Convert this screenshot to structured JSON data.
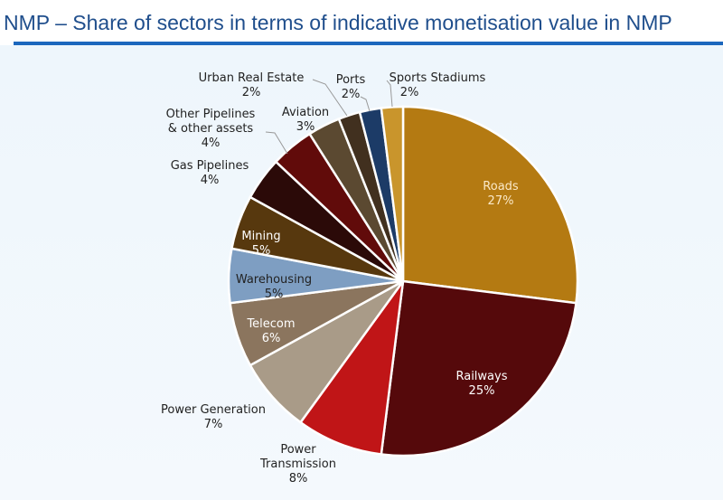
{
  "title": "NMP – Share of sectors in terms of indicative monetisation value in NMP",
  "chart_data": {
    "type": "pie",
    "title": "NMP – Share of sectors in terms of indicative monetisation value in NMP",
    "unit": "%",
    "start": "top, clockwise",
    "slices": [
      {
        "name": "Roads",
        "value": 27,
        "label": [
          "Roads",
          "27%"
        ],
        "color": "#B47A12"
      },
      {
        "name": "Railways",
        "value": 25,
        "label": [
          "Railways",
          "25%"
        ],
        "color": "#55090B"
      },
      {
        "name": "Power Transmission",
        "value": 8,
        "label": [
          "Power",
          "Transmission",
          "8%"
        ],
        "color": "#C01517"
      },
      {
        "name": "Power Generation",
        "value": 7,
        "label": [
          "Power Generation",
          "7%"
        ],
        "color": "#A99B88"
      },
      {
        "name": "Telecom",
        "value": 6,
        "label": [
          "Telecom",
          "6%"
        ],
        "color": "#8B755E"
      },
      {
        "name": "Warehousing",
        "value": 5,
        "label": [
          "Warehousing",
          "5%"
        ],
        "color": "#7E9EC2"
      },
      {
        "name": "Mining",
        "value": 5,
        "label": [
          "Mining",
          "5%"
        ],
        "color": "#57380E"
      },
      {
        "name": "Gas Pipelines",
        "value": 4,
        "label": [
          "Gas Pipelines",
          "4%"
        ],
        "color": "#2B0A08"
      },
      {
        "name": "Other Pipelines & other assets",
        "value": 4,
        "label": [
          "Other Pipelines",
          "& other assets",
          "4%"
        ],
        "color": "#610B0A"
      },
      {
        "name": "Aviation",
        "value": 3,
        "label": [
          "Aviation",
          "3%"
        ],
        "color": "#5B4931"
      },
      {
        "name": "Urban Real Estate",
        "value": 2,
        "label": [
          "Urban Real Estate",
          "2%"
        ],
        "color": "#41301F"
      },
      {
        "name": "Ports",
        "value": 2,
        "label": [
          "Ports",
          "2%"
        ],
        "color": "#1C3B67"
      },
      {
        "name": "Sports Stadiums",
        "value": 2,
        "label": [
          "Sports Stadiums",
          "2%"
        ],
        "color": "#C9952C"
      }
    ]
  }
}
